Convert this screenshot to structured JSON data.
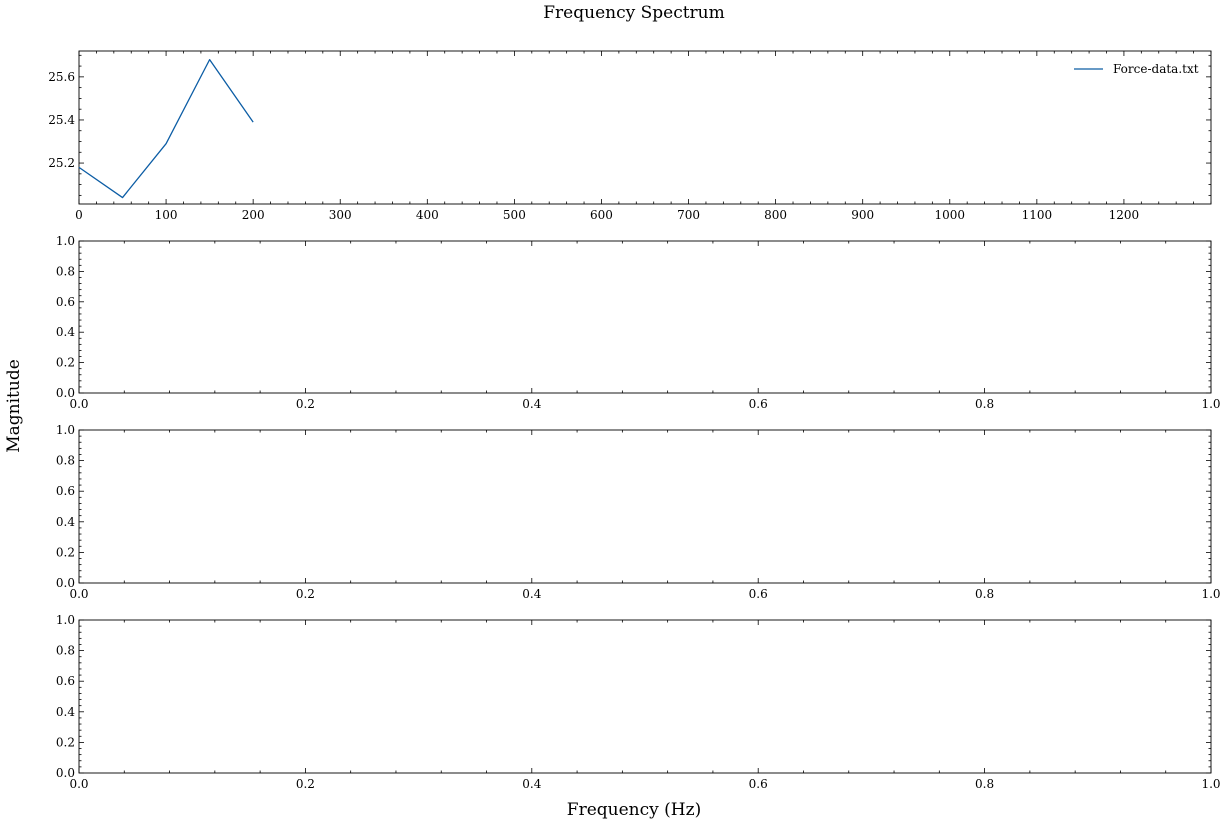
{
  "figure": {
    "suptitle": "Frequency Spectrum",
    "supxlabel": "Frequency (Hz)",
    "supylabel": "Magnitude"
  },
  "colors": {
    "series": "#0c5da5",
    "axes": "#000000",
    "background": "#ffffff"
  },
  "chart_data": [
    {
      "type": "line",
      "title": "",
      "xlabel": "",
      "ylabel": "",
      "xlim": [
        0,
        1300
      ],
      "ylim": [
        25.01,
        25.72
      ],
      "xticks": [
        0,
        100,
        200,
        300,
        400,
        500,
        600,
        700,
        800,
        900,
        1000,
        1100,
        1200
      ],
      "xtick_labels": [
        "0",
        "100",
        "200",
        "300",
        "400",
        "500",
        "600",
        "700",
        "800",
        "900",
        "1000",
        "1100",
        "1200"
      ],
      "x_minor_step": 20,
      "yticks": [
        25.2,
        25.4,
        25.6
      ],
      "ytick_labels": [
        "25.2",
        "25.4",
        "25.6"
      ],
      "y_minor_step": 0.05,
      "grid": false,
      "legend": "top-right",
      "series": [
        {
          "name": "Force-data.txt",
          "x": [
            0,
            50,
            100,
            150,
            200
          ],
          "y": [
            25.18,
            25.04,
            25.29,
            25.68,
            25.39
          ]
        }
      ]
    },
    {
      "type": "line",
      "xlim": [
        0,
        1
      ],
      "ylim": [
        0,
        1
      ],
      "xticks": [
        0,
        0.2,
        0.4,
        0.6,
        0.8,
        1.0
      ],
      "xtick_labels": [
        "0.0",
        "0.2",
        "0.4",
        "0.6",
        "0.8",
        "1.0"
      ],
      "x_minor_step": 0.04,
      "yticks": [
        0,
        0.2,
        0.4,
        0.6,
        0.8,
        1.0
      ],
      "ytick_labels": [
        "0.0",
        "0.2",
        "0.4",
        "0.6",
        "0.8",
        "1.0"
      ],
      "y_minor_step": 0.04,
      "grid": false,
      "series": []
    },
    {
      "type": "line",
      "xlim": [
        0,
        1
      ],
      "ylim": [
        0,
        1
      ],
      "xticks": [
        0,
        0.2,
        0.4,
        0.6,
        0.8,
        1.0
      ],
      "xtick_labels": [
        "0.0",
        "0.2",
        "0.4",
        "0.6",
        "0.8",
        "1.0"
      ],
      "x_minor_step": 0.04,
      "yticks": [
        0,
        0.2,
        0.4,
        0.6,
        0.8,
        1.0
      ],
      "ytick_labels": [
        "0.0",
        "0.2",
        "0.4",
        "0.6",
        "0.8",
        "1.0"
      ],
      "y_minor_step": 0.04,
      "grid": false,
      "series": []
    },
    {
      "type": "line",
      "xlim": [
        0,
        1
      ],
      "ylim": [
        0,
        1
      ],
      "xticks": [
        0,
        0.2,
        0.4,
        0.6,
        0.8,
        1.0
      ],
      "xtick_labels": [
        "0.0",
        "0.2",
        "0.4",
        "0.6",
        "0.8",
        "1.0"
      ],
      "x_minor_step": 0.04,
      "yticks": [
        0,
        0.2,
        0.4,
        0.6,
        0.8,
        1.0
      ],
      "ytick_labels": [
        "0.0",
        "0.2",
        "0.4",
        "0.6",
        "0.8",
        "1.0"
      ],
      "y_minor_step": 0.04,
      "grid": false,
      "series": []
    }
  ]
}
